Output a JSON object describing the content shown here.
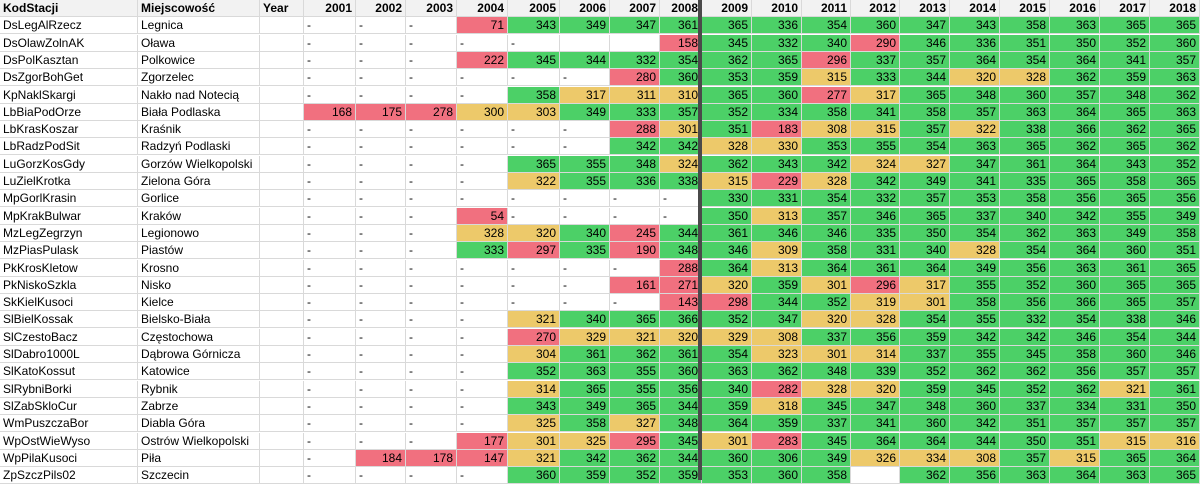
{
  "header": {
    "code": "KodStacji",
    "city": "Miejscowość",
    "year": "Year",
    "years": [
      "2001",
      "2002",
      "2003",
      "2004",
      "2005",
      "2006",
      "2007",
      "2008",
      "2009",
      "2010",
      "2011",
      "2012",
      "2013",
      "2014",
      "2015",
      "2016",
      "2017",
      "2018"
    ]
  },
  "colors": {
    "green": "#4cd067",
    "yellow": "#edc96a",
    "red": "#f1707f",
    "blank": "#ffffff"
  },
  "rows": [
    {
      "code": "DsLegAlRzecz",
      "city": "Legnica",
      "v": [
        "-",
        "-",
        "-",
        "71",
        "343",
        "349",
        "347",
        "361",
        "365",
        "336",
        "354",
        "360",
        "347",
        "343",
        "358",
        "363",
        "365",
        "365"
      ],
      "c": [
        "",
        "",
        "",
        "r",
        "g",
        "g",
        "g",
        "g",
        "g",
        "g",
        "g",
        "g",
        "g",
        "g",
        "g",
        "g",
        "g",
        "g"
      ]
    },
    {
      "code": "DsOlawZolnAK",
      "city": "Oława",
      "v": [
        "-",
        "-",
        "-",
        "-",
        "-",
        "",
        "",
        "158",
        "345",
        "332",
        "340",
        "290",
        "346",
        "336",
        "351",
        "350",
        "352",
        "360"
      ],
      "c": [
        "",
        "",
        "",
        "",
        "",
        "",
        "",
        "r",
        "g",
        "g",
        "g",
        "r",
        "g",
        "g",
        "g",
        "g",
        "g",
        "g"
      ]
    },
    {
      "code": "DsPolKasztan",
      "city": "Polkowice",
      "v": [
        "-",
        "-",
        "-",
        "222",
        "345",
        "344",
        "332",
        "354",
        "362",
        "365",
        "296",
        "337",
        "357",
        "364",
        "354",
        "364",
        "341",
        "357"
      ],
      "c": [
        "",
        "",
        "",
        "r",
        "g",
        "g",
        "g",
        "g",
        "g",
        "g",
        "r",
        "g",
        "g",
        "g",
        "g",
        "g",
        "g",
        "g"
      ]
    },
    {
      "code": "DsZgorBohGet",
      "city": "Zgorzelec",
      "v": [
        "-",
        "-",
        "-",
        "-",
        "-",
        "-",
        "280",
        "360",
        "353",
        "359",
        "315",
        "333",
        "344",
        "320",
        "328",
        "362",
        "359",
        "363"
      ],
      "c": [
        "",
        "",
        "",
        "",
        "",
        "",
        "r",
        "g",
        "g",
        "g",
        "y",
        "g",
        "g",
        "y",
        "y",
        "g",
        "g",
        "g"
      ]
    },
    {
      "code": "KpNaklSkargi",
      "city": "Nakło nad Notecią",
      "v": [
        "-",
        "-",
        "-",
        "-",
        "358",
        "317",
        "311",
        "310",
        "365",
        "360",
        "277",
        "317",
        "365",
        "348",
        "360",
        "357",
        "348",
        "362"
      ],
      "c": [
        "",
        "",
        "",
        "",
        "g",
        "y",
        "y",
        "y",
        "g",
        "g",
        "r",
        "y",
        "g",
        "g",
        "g",
        "g",
        "g",
        "g"
      ]
    },
    {
      "code": "LbBiaPodOrze",
      "city": "Biała Podlaska",
      "v": [
        "168",
        "175",
        "278",
        "300",
        "303",
        "349",
        "333",
        "357",
        "352",
        "334",
        "358",
        "341",
        "358",
        "357",
        "363",
        "364",
        "365",
        "363"
      ],
      "c": [
        "r",
        "r",
        "r",
        "y",
        "y",
        "g",
        "g",
        "g",
        "g",
        "g",
        "g",
        "g",
        "g",
        "g",
        "g",
        "g",
        "g",
        "g"
      ]
    },
    {
      "code": "LbKrasKoszar",
      "city": "Kraśnik",
      "v": [
        "-",
        "-",
        "-",
        "-",
        "-",
        "-",
        "288",
        "301",
        "351",
        "183",
        "308",
        "315",
        "357",
        "322",
        "338",
        "366",
        "362",
        "365"
      ],
      "c": [
        "",
        "",
        "",
        "",
        "",
        "",
        "r",
        "y",
        "g",
        "r",
        "y",
        "y",
        "g",
        "y",
        "g",
        "g",
        "g",
        "g"
      ]
    },
    {
      "code": "LbRadzPodSit",
      "city": "Radzyń Podlaski",
      "v": [
        "-",
        "-",
        "-",
        "-",
        "-",
        "-",
        "342",
        "342",
        "328",
        "330",
        "353",
        "355",
        "354",
        "363",
        "365",
        "362",
        "365",
        "362"
      ],
      "c": [
        "",
        "",
        "",
        "",
        "",
        "",
        "g",
        "g",
        "y",
        "y",
        "g",
        "g",
        "g",
        "g",
        "g",
        "g",
        "g",
        "g"
      ]
    },
    {
      "code": "LuGorzKosGdy",
      "city": "Gorzów Wielkopolski",
      "v": [
        "-",
        "-",
        "-",
        "-",
        "365",
        "355",
        "348",
        "324",
        "362",
        "343",
        "342",
        "324",
        "327",
        "347",
        "361",
        "364",
        "343",
        "352"
      ],
      "c": [
        "",
        "",
        "",
        "",
        "g",
        "g",
        "g",
        "y",
        "g",
        "g",
        "g",
        "y",
        "y",
        "g",
        "g",
        "g",
        "g",
        "g"
      ]
    },
    {
      "code": "LuZielKrotka",
      "city": "Zielona Góra",
      "v": [
        "-",
        "-",
        "-",
        "-",
        "322",
        "355",
        "336",
        "338",
        "315",
        "229",
        "328",
        "342",
        "349",
        "341",
        "335",
        "365",
        "358",
        "365"
      ],
      "c": [
        "",
        "",
        "",
        "",
        "y",
        "g",
        "g",
        "g",
        "y",
        "r",
        "y",
        "g",
        "g",
        "g",
        "g",
        "g",
        "g",
        "g"
      ]
    },
    {
      "code": "MpGorlKrasin",
      "city": "Gorlice",
      "v": [
        "-",
        "-",
        "-",
        "-",
        "-",
        "-",
        "-",
        "-",
        "330",
        "331",
        "354",
        "332",
        "357",
        "353",
        "358",
        "356",
        "365",
        "356"
      ],
      "c": [
        "",
        "",
        "",
        "",
        "",
        "",
        "",
        "",
        "g",
        "g",
        "g",
        "g",
        "g",
        "g",
        "g",
        "g",
        "g",
        "g"
      ]
    },
    {
      "code": "MpKrakBulwar",
      "city": "Kraków",
      "v": [
        "-",
        "-",
        "-",
        "54",
        "-",
        "-",
        "-",
        "-",
        "350",
        "313",
        "357",
        "346",
        "365",
        "337",
        "340",
        "342",
        "355",
        "349"
      ],
      "c": [
        "",
        "",
        "",
        "r",
        "",
        "",
        "",
        "",
        "g",
        "y",
        "g",
        "g",
        "g",
        "g",
        "g",
        "g",
        "g",
        "g"
      ]
    },
    {
      "code": "MzLegZegrzyn",
      "city": "Legionowo",
      "v": [
        "-",
        "-",
        "-",
        "328",
        "320",
        "340",
        "245",
        "344",
        "361",
        "346",
        "346",
        "335",
        "350",
        "354",
        "362",
        "363",
        "349",
        "358"
      ],
      "c": [
        "",
        "",
        "",
        "y",
        "y",
        "g",
        "r",
        "g",
        "g",
        "g",
        "g",
        "g",
        "g",
        "g",
        "g",
        "g",
        "g",
        "g"
      ]
    },
    {
      "code": "MzPiasPulask",
      "city": "Piastów",
      "v": [
        "-",
        "-",
        "-",
        "333",
        "297",
        "335",
        "190",
        "348",
        "346",
        "309",
        "358",
        "331",
        "340",
        "328",
        "354",
        "364",
        "360",
        "351"
      ],
      "c": [
        "",
        "",
        "",
        "g",
        "r",
        "g",
        "r",
        "g",
        "g",
        "y",
        "g",
        "g",
        "g",
        "y",
        "g",
        "g",
        "g",
        "g"
      ]
    },
    {
      "code": "PkKrosKletow",
      "city": "Krosno",
      "v": [
        "-",
        "-",
        "-",
        "-",
        "-",
        "-",
        "-",
        "288",
        "364",
        "313",
        "364",
        "361",
        "364",
        "349",
        "356",
        "363",
        "361",
        "365"
      ],
      "c": [
        "",
        "",
        "",
        "",
        "",
        "",
        "",
        "r",
        "g",
        "y",
        "g",
        "g",
        "g",
        "g",
        "g",
        "g",
        "g",
        "g"
      ]
    },
    {
      "code": "PkNiskoSzkla",
      "city": "Nisko",
      "v": [
        "-",
        "-",
        "-",
        "-",
        "-",
        "-",
        "161",
        "271",
        "320",
        "359",
        "301",
        "296",
        "317",
        "355",
        "352",
        "360",
        "365",
        "365"
      ],
      "c": [
        "",
        "",
        "",
        "",
        "",
        "",
        "r",
        "r",
        "y",
        "g",
        "y",
        "r",
        "y",
        "g",
        "g",
        "g",
        "g",
        "g"
      ]
    },
    {
      "code": "SkKielKusoci",
      "city": "Kielce",
      "v": [
        "-",
        "-",
        "-",
        "-",
        "-",
        "-",
        "-",
        "143",
        "298",
        "344",
        "352",
        "319",
        "301",
        "358",
        "356",
        "366",
        "365",
        "357"
      ],
      "c": [
        "",
        "",
        "",
        "",
        "",
        "",
        "",
        "r",
        "r",
        "g",
        "g",
        "y",
        "y",
        "g",
        "g",
        "g",
        "g",
        "g"
      ]
    },
    {
      "code": "SlBielKossak",
      "city": "Bielsko-Biała",
      "v": [
        "-",
        "-",
        "-",
        "-",
        "321",
        "340",
        "365",
        "366",
        "352",
        "347",
        "320",
        "328",
        "354",
        "355",
        "332",
        "354",
        "338",
        "346"
      ],
      "c": [
        "",
        "",
        "",
        "",
        "y",
        "g",
        "g",
        "g",
        "g",
        "g",
        "y",
        "y",
        "g",
        "g",
        "g",
        "g",
        "g",
        "g"
      ]
    },
    {
      "code": "SlCzestoBacz",
      "city": "Częstochowa",
      "v": [
        "-",
        "-",
        "-",
        "-",
        "270",
        "329",
        "321",
        "320",
        "329",
        "308",
        "337",
        "356",
        "359",
        "342",
        "342",
        "346",
        "354",
        "344"
      ],
      "c": [
        "",
        "",
        "",
        "",
        "r",
        "y",
        "y",
        "y",
        "y",
        "y",
        "g",
        "g",
        "g",
        "g",
        "g",
        "g",
        "g",
        "g"
      ]
    },
    {
      "code": "SlDabro1000L",
      "city": "Dąbrowa Górnicza",
      "v": [
        "-",
        "-",
        "-",
        "-",
        "304",
        "361",
        "362",
        "361",
        "354",
        "323",
        "301",
        "314",
        "337",
        "355",
        "345",
        "358",
        "360",
        "346"
      ],
      "c": [
        "",
        "",
        "",
        "",
        "y",
        "g",
        "g",
        "g",
        "g",
        "y",
        "y",
        "y",
        "g",
        "g",
        "g",
        "g",
        "g",
        "g"
      ]
    },
    {
      "code": "SlKatoKossut",
      "city": "Katowice",
      "v": [
        "-",
        "-",
        "-",
        "-",
        "352",
        "363",
        "355",
        "360",
        "363",
        "362",
        "348",
        "339",
        "352",
        "362",
        "362",
        "356",
        "357",
        "357"
      ],
      "c": [
        "",
        "",
        "",
        "",
        "g",
        "g",
        "g",
        "g",
        "g",
        "g",
        "g",
        "g",
        "g",
        "g",
        "g",
        "g",
        "g",
        "g"
      ]
    },
    {
      "code": "SlRybniBorki",
      "city": "Rybnik",
      "v": [
        "-",
        "-",
        "-",
        "-",
        "314",
        "365",
        "355",
        "356",
        "340",
        "282",
        "328",
        "320",
        "359",
        "345",
        "352",
        "362",
        "321",
        "361"
      ],
      "c": [
        "",
        "",
        "",
        "",
        "y",
        "g",
        "g",
        "g",
        "g",
        "r",
        "y",
        "y",
        "g",
        "g",
        "g",
        "g",
        "y",
        "g"
      ]
    },
    {
      "code": "SlZabSkloCur",
      "city": "Zabrze",
      "v": [
        "-",
        "-",
        "-",
        "-",
        "343",
        "349",
        "365",
        "344",
        "359",
        "318",
        "345",
        "347",
        "348",
        "360",
        "337",
        "334",
        "331",
        "350"
      ],
      "c": [
        "",
        "",
        "",
        "",
        "g",
        "g",
        "g",
        "g",
        "g",
        "y",
        "g",
        "g",
        "g",
        "g",
        "g",
        "g",
        "g",
        "g"
      ]
    },
    {
      "code": "WmPuszczaBor",
      "city": "Diabla Góra",
      "v": [
        "-",
        "-",
        "-",
        "-",
        "325",
        "358",
        "327",
        "348",
        "364",
        "359",
        "337",
        "341",
        "360",
        "342",
        "351",
        "357",
        "357",
        "357"
      ],
      "c": [
        "",
        "",
        "",
        "",
        "y",
        "g",
        "y",
        "g",
        "g",
        "g",
        "g",
        "g",
        "g",
        "g",
        "g",
        "g",
        "g",
        "g"
      ]
    },
    {
      "code": "WpOstWieWyso",
      "city": "Ostrów Wielkopolski",
      "v": [
        "-",
        "-",
        "-",
        "177",
        "301",
        "325",
        "295",
        "345",
        "301",
        "283",
        "345",
        "364",
        "364",
        "344",
        "350",
        "351",
        "315",
        "316"
      ],
      "c": [
        "",
        "",
        "",
        "r",
        "y",
        "y",
        "r",
        "g",
        "y",
        "r",
        "g",
        "g",
        "g",
        "g",
        "g",
        "g",
        "y",
        "y"
      ]
    },
    {
      "code": "WpPilaKusoci",
      "city": "Piła",
      "v": [
        "-",
        "184",
        "178",
        "147",
        "321",
        "342",
        "362",
        "344",
        "360",
        "306",
        "349",
        "326",
        "334",
        "308",
        "357",
        "315",
        "365",
        "364"
      ],
      "c": [
        "",
        "r",
        "r",
        "r",
        "y",
        "g",
        "g",
        "g",
        "g",
        "g",
        "g",
        "y",
        "y",
        "y",
        "g",
        "y",
        "g",
        "g"
      ]
    },
    {
      "code": "ZpSzczPils02",
      "city": "Szczecin",
      "v": [
        "-",
        "-",
        "-",
        "-",
        "360",
        "359",
        "352",
        "359",
        "353",
        "360",
        "358",
        "",
        "362",
        "356",
        "363",
        "364",
        "363",
        "365"
      ],
      "c": [
        "",
        "",
        "",
        "",
        "g",
        "g",
        "g",
        "g",
        "g",
        "g",
        "g",
        "",
        "g",
        "g",
        "g",
        "g",
        "g",
        "g"
      ]
    }
  ]
}
